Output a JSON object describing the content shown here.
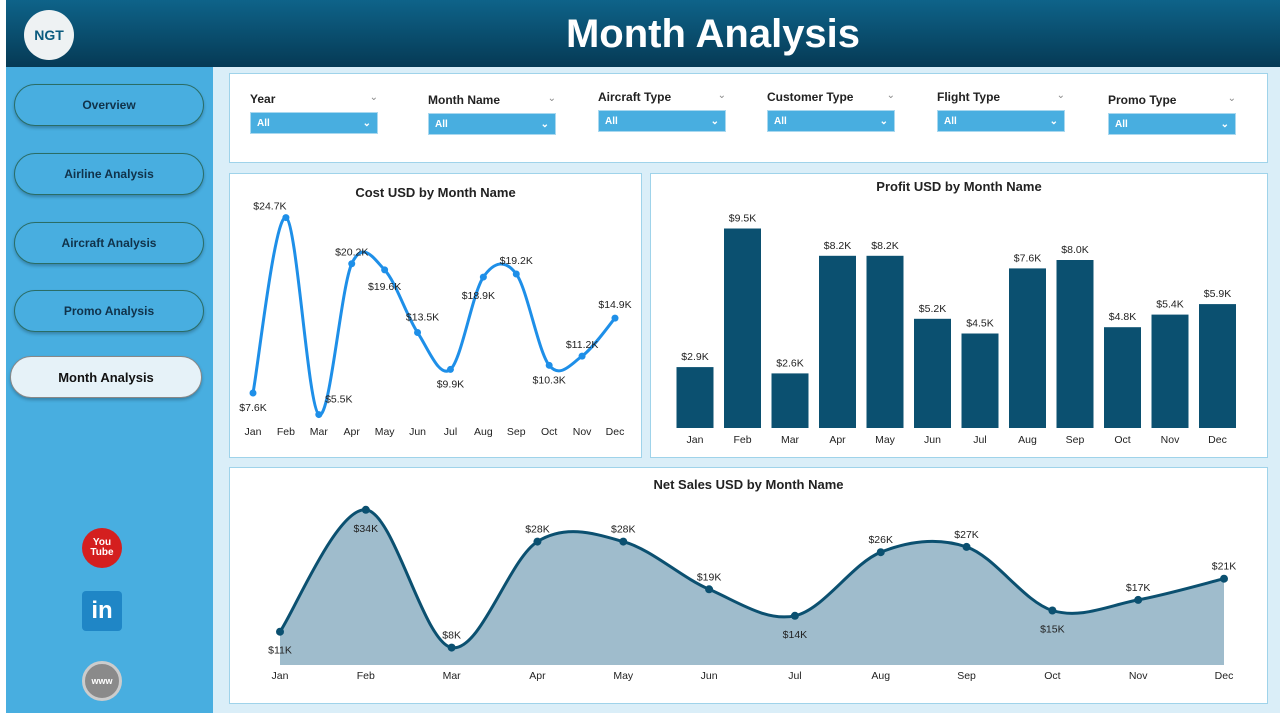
{
  "header": {
    "title": "Month Analysis",
    "logo_text": "NGT"
  },
  "sidebar": {
    "items": [
      {
        "label": "Overview"
      },
      {
        "label": "Airline Analysis"
      },
      {
        "label": "Aircraft Analysis"
      },
      {
        "label": "Promo Analysis"
      },
      {
        "label": "Month Analysis",
        "active": true
      }
    ],
    "social": [
      {
        "icon": "youtube-icon",
        "label": "You Tube"
      },
      {
        "icon": "linkedin-icon",
        "label": "in"
      },
      {
        "icon": "globe-icon",
        "label": "www"
      }
    ]
  },
  "filters": [
    {
      "label": "Year",
      "value": "All"
    },
    {
      "label": "Month Name",
      "value": "All"
    },
    {
      "label": "Aircraft Type",
      "value": "All"
    },
    {
      "label": "Customer Type",
      "value": "All"
    },
    {
      "label": "Flight Type",
      "value": "All"
    },
    {
      "label": "Promo Type",
      "value": "All"
    }
  ],
  "colors": {
    "header": "#063a55",
    "sidebar": "#48aee0",
    "line": "#1e8fe8",
    "bar": "#0b5070",
    "area": "#9fbccc"
  },
  "chart_data": [
    {
      "type": "line",
      "title": "Cost USD by Month Name",
      "categories": [
        "Jan",
        "Feb",
        "Mar",
        "Apr",
        "May",
        "Jun",
        "Jul",
        "Aug",
        "Sep",
        "Oct",
        "Nov",
        "Dec"
      ],
      "values": [
        7.6,
        24.7,
        5.5,
        20.2,
        19.6,
        13.5,
        9.9,
        18.9,
        19.2,
        10.3,
        11.2,
        14.9
      ],
      "labels": [
        "$7.6K",
        "$24.7K",
        "$5.5K",
        "$20.2K",
        "$19.6K",
        "$13.5K",
        "$9.9K",
        "$18.9K",
        "$19.2K",
        "$10.3K",
        "$11.2K",
        "$14.9K"
      ],
      "unit": "K USD"
    },
    {
      "type": "bar",
      "title": "Profit USD by Month Name",
      "categories": [
        "Jan",
        "Feb",
        "Mar",
        "Apr",
        "May",
        "Jun",
        "Jul",
        "Aug",
        "Sep",
        "Oct",
        "Nov",
        "Dec"
      ],
      "values": [
        2.9,
        9.5,
        2.6,
        8.2,
        8.2,
        5.2,
        4.5,
        7.6,
        8.0,
        4.8,
        5.4,
        5.9
      ],
      "labels": [
        "$2.9K",
        "$9.5K",
        "$2.6K",
        "$8.2K",
        "$8.2K",
        "$5.2K",
        "$4.5K",
        "$7.6K",
        "$8.0K",
        "$4.8K",
        "$5.4K",
        "$5.9K"
      ],
      "unit": "K USD"
    },
    {
      "type": "area",
      "title": "Net Sales USD by Month Name",
      "categories": [
        "Jan",
        "Feb",
        "Mar",
        "Apr",
        "May",
        "Jun",
        "Jul",
        "Aug",
        "Sep",
        "Oct",
        "Nov",
        "Dec"
      ],
      "values": [
        11,
        34,
        8,
        28,
        28,
        19,
        14,
        26,
        27,
        15,
        17,
        21
      ],
      "labels": [
        "$11K",
        "$34K",
        "$8K",
        "$28K",
        "$28K",
        "$19K",
        "$14K",
        "$26K",
        "$27K",
        "$15K",
        "$17K",
        "$21K"
      ],
      "unit": "K USD"
    }
  ]
}
